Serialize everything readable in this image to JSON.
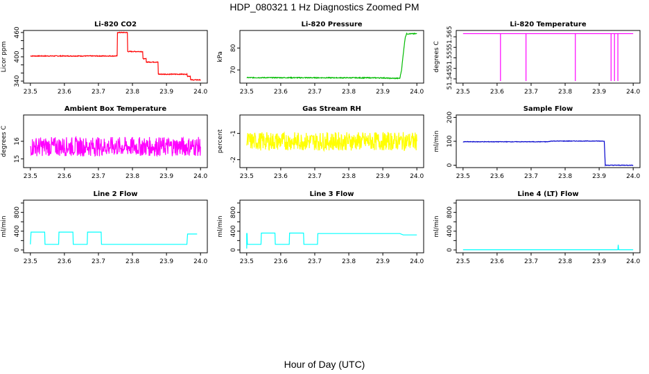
{
  "figure": {
    "title": "HDP_080321  1 Hz Diagnostics Zoomed PM",
    "xlabel": "Hour of Day (UTC)"
  },
  "chart_data": [
    {
      "type": "line",
      "title": "Li-820 CO2",
      "xlabel": "",
      "ylabel": "Licor ppm",
      "xlim": [
        23.48,
        24.02
      ],
      "ylim": [
        335,
        465
      ],
      "xticks": [
        23.5,
        23.6,
        23.7,
        23.8,
        23.9,
        24.0
      ],
      "yticks": [
        340,
        360,
        380,
        400,
        420,
        440,
        460
      ],
      "ytick_labels": [
        "340",
        "",
        "",
        "400",
        "",
        "",
        "460"
      ],
      "color": "#ff0000",
      "noise": 1,
      "series": [
        {
          "x": [
            23.5,
            23.755,
            23.756,
            23.785,
            23.786,
            23.83,
            23.831,
            23.84,
            23.841,
            23.875,
            23.876,
            23.96,
            23.962,
            23.97,
            23.971,
            24.0
          ],
          "y": [
            402,
            402,
            460,
            460,
            413,
            413,
            395,
            395,
            387,
            387,
            357,
            357,
            352,
            352,
            343,
            343
          ]
        }
      ]
    },
    {
      "type": "line",
      "title": "Li-820 Pressure",
      "xlabel": "",
      "ylabel": "kPa",
      "xlim": [
        23.48,
        24.02
      ],
      "ylim": [
        64,
        88
      ],
      "xticks": [
        23.5,
        23.6,
        23.7,
        23.8,
        23.9,
        24.0
      ],
      "yticks": [
        70,
        80
      ],
      "color": "#00bb00",
      "noise": 0.2,
      "series": [
        {
          "x": [
            23.5,
            23.9,
            23.92,
            23.95,
            23.955,
            23.962,
            23.966,
            23.97,
            24.0
          ],
          "y": [
            66.5,
            66.4,
            66.2,
            66.2,
            70,
            80,
            85,
            86.5,
            86.5
          ]
        }
      ]
    },
    {
      "type": "line",
      "title": "Li-820 Temperature",
      "xlabel": "",
      "ylabel": "degrees C",
      "xlim": [
        23.48,
        24.02
      ],
      "ylim": [
        51.543,
        51.568
      ],
      "xticks": [
        23.5,
        23.6,
        23.7,
        23.8,
        23.9,
        24.0
      ],
      "yticks": [
        51.545,
        51.55,
        51.555,
        51.56,
        51.565
      ],
      "ytick_labels": [
        "51.545",
        "",
        "51.555",
        "",
        "51.565"
      ],
      "color": "#ff00ff",
      "noise": 0,
      "series": [
        {
          "x": [
            23.5,
            23.61,
            23.61,
            23.61,
            23.685,
            23.685,
            23.685,
            23.83,
            23.83,
            23.83,
            23.935,
            23.935,
            23.935,
            23.945,
            23.945,
            23.945,
            23.955,
            23.955,
            23.955,
            24.0
          ],
          "y": [
            51.5665,
            51.5665,
            51.544,
            51.5665,
            51.5665,
            51.544,
            51.5665,
            51.5665,
            51.544,
            51.5665,
            51.5665,
            51.544,
            51.5665,
            51.5665,
            51.544,
            51.5665,
            51.5665,
            51.544,
            51.5665,
            51.5665
          ]
        }
      ]
    },
    {
      "type": "line",
      "title": "Ambient Box Temperature",
      "xlabel": "",
      "ylabel": "degrees C",
      "xlim": [
        23.48,
        24.02
      ],
      "ylim": [
        14.5,
        17.5
      ],
      "xticks": [
        23.5,
        23.6,
        23.7,
        23.8,
        23.9,
        24.0
      ],
      "yticks": [
        15.0,
        16.0
      ],
      "color": "#ff00ff",
      "noise": 0.55,
      "series": [
        {
          "x": [
            23.5,
            24.0
          ],
          "y": [
            15.7,
            15.7
          ]
        }
      ]
    },
    {
      "type": "line",
      "title": "Gas Stream RH",
      "xlabel": "",
      "ylabel": "percent",
      "xlim": [
        23.48,
        24.02
      ],
      "ylim": [
        -2.3,
        -0.3
      ],
      "xticks": [
        23.5,
        23.6,
        23.7,
        23.8,
        23.9,
        24.0
      ],
      "yticks": [
        -2.0,
        -1.0
      ],
      "color": "#ffff00",
      "noise": 0.35,
      "series": [
        {
          "x": [
            23.5,
            24.0
          ],
          "y": [
            -1.3,
            -1.3
          ]
        }
      ]
    },
    {
      "type": "line",
      "title": "Sample Flow",
      "xlabel": "",
      "ylabel": "ml/min",
      "xlim": [
        23.48,
        24.02
      ],
      "ylim": [
        -10,
        210
      ],
      "xticks": [
        23.5,
        23.6,
        23.7,
        23.8,
        23.9,
        24.0
      ],
      "yticks": [
        0,
        100,
        200
      ],
      "color": "#0000cc",
      "noise": 1,
      "series": [
        {
          "x": [
            23.5,
            23.75,
            23.76,
            23.915,
            23.918,
            24.0
          ],
          "y": [
            98,
            98,
            101,
            101,
            0,
            0
          ]
        }
      ]
    },
    {
      "type": "line",
      "title": "Line 2 Flow",
      "xlabel": "",
      "ylabel": "ml/min",
      "xlim": [
        23.48,
        24.02
      ],
      "ylim": [
        -60,
        1060
      ],
      "xticks": [
        23.5,
        23.6,
        23.7,
        23.8,
        23.9,
        24.0
      ],
      "yticks": [
        0,
        200,
        400,
        600,
        800,
        1000
      ],
      "ytick_labels": [
        "0",
        "",
        "400",
        "",
        "800",
        ""
      ],
      "color": "#00ffff",
      "noise": 0,
      "series": [
        {
          "x": [
            23.5,
            23.502,
            23.542,
            23.543,
            23.583,
            23.584,
            23.625,
            23.626,
            23.667,
            23.668,
            23.708,
            23.709,
            23.96,
            23.962,
            23.99
          ],
          "y": [
            120,
            380,
            380,
            120,
            120,
            380,
            380,
            120,
            120,
            380,
            380,
            120,
            120,
            340,
            340
          ]
        }
      ]
    },
    {
      "type": "line",
      "title": "Line 3 Flow",
      "xlabel": "",
      "ylabel": "ml/min",
      "xlim": [
        23.48,
        24.02
      ],
      "ylim": [
        -60,
        1060
      ],
      "xticks": [
        23.5,
        23.6,
        23.7,
        23.8,
        23.9,
        24.0
      ],
      "yticks": [
        0,
        200,
        400,
        600,
        800,
        1000
      ],
      "ytick_labels": [
        "0",
        "",
        "400",
        "",
        "800",
        ""
      ],
      "color": "#00ffff",
      "noise": 0,
      "series": [
        {
          "x": [
            23.5,
            23.5,
            23.501,
            23.502,
            23.542,
            23.543,
            23.583,
            23.584,
            23.625,
            23.626,
            23.667,
            23.668,
            23.708,
            23.709,
            23.95,
            23.96,
            24.0
          ],
          "y": [
            360,
            30,
            360,
            120,
            120,
            360,
            360,
            120,
            120,
            360,
            360,
            120,
            120,
            350,
            350,
            320,
            320
          ]
        }
      ]
    },
    {
      "type": "line",
      "title": "Line 4 (LT) Flow",
      "xlabel": "",
      "ylabel": "ml/min",
      "xlim": [
        23.48,
        24.02
      ],
      "ylim": [
        -60,
        1060
      ],
      "xticks": [
        23.5,
        23.6,
        23.7,
        23.8,
        23.9,
        24.0
      ],
      "yticks": [
        0,
        200,
        400,
        600,
        800,
        1000
      ],
      "ytick_labels": [
        "0",
        "",
        "400",
        "",
        "800",
        ""
      ],
      "color": "#00ffff",
      "noise": 0,
      "series": [
        {
          "x": [
            23.5,
            23.955,
            23.956,
            23.957,
            23.958,
            24.0
          ],
          "y": [
            5,
            5,
            110,
            20,
            5,
            5
          ]
        }
      ]
    }
  ]
}
